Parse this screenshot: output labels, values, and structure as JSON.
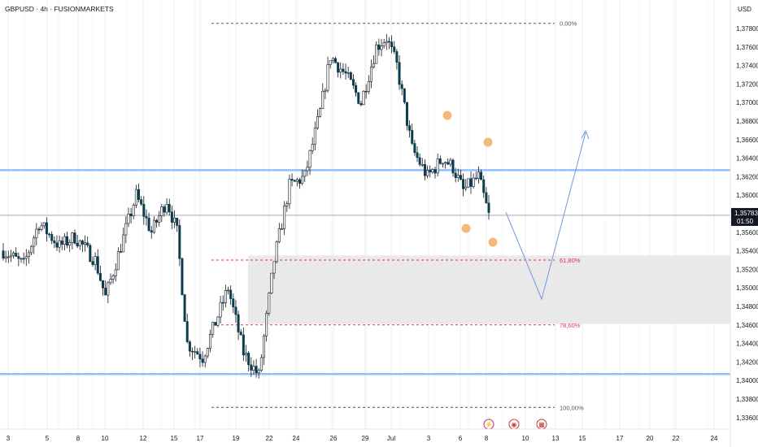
{
  "header": {
    "title": "GBPUSD · 4h · FUSIONMARKETS",
    "currency": "USD"
  },
  "price_tag": {
    "price": "1,35783",
    "countdown": "01:50"
  },
  "colors": {
    "up": "#ffffff",
    "up_border": "#131722",
    "down": "#0b3d4f",
    "horizontal_line": "#90bff9",
    "fib_box": "#e9e9e9",
    "fib_red": "#e0334f",
    "projection": "#6f9ae0",
    "marker": "#f5b97a",
    "grid": "#eeeeee"
  },
  "chart_data": {
    "type": "candlestick",
    "symbol": "GBPUSD",
    "timeframe": "4h",
    "y_axis": {
      "ticks": [
        "1,37800",
        "1,37600",
        "1,37400",
        "1,37200",
        "1,37000",
        "1,36800",
        "1,36600",
        "1,36400",
        "1,36200",
        "1,36000",
        "1,35600",
        "1,35400",
        "1,35200",
        "1,35000",
        "1,34800",
        "1,34600",
        "1,34400",
        "1,34200",
        "1,34000",
        "1,33800",
        "1,33600"
      ],
      "tick_values": [
        1.378,
        1.376,
        1.374,
        1.372,
        1.37,
        1.368,
        1.366,
        1.364,
        1.362,
        1.36,
        1.356,
        1.354,
        1.352,
        1.35,
        1.348,
        1.346,
        1.344,
        1.342,
        1.34,
        1.338,
        1.336
      ],
      "range": [
        1.3355,
        1.3825
      ]
    },
    "x_axis": {
      "labels": [
        "3",
        "5",
        "8",
        "10",
        "12",
        "15",
        "17",
        "19",
        "22",
        "24",
        "26",
        "29",
        "Jul",
        "3",
        "6",
        "8",
        "10",
        "13",
        "15",
        "17",
        "20",
        "22",
        "24"
      ]
    },
    "horizontal_lines": [
      1.3627,
      1.3407
    ],
    "current_price": 1.35783,
    "fibonacci": [
      {
        "label": "0,00%",
        "level": 1.37855
      },
      {
        "label": "61,80%",
        "level": 1.353
      },
      {
        "label": "78,60%",
        "level": 1.346
      },
      {
        "label": "100,00%",
        "level": 1.3371
      }
    ],
    "projection_path": [
      [
        1.3575,
        0
      ],
      [
        1.3493,
        1
      ],
      [
        1.368,
        2
      ]
    ],
    "event_icons": [
      "lightning",
      "us-flag",
      "calendar"
    ],
    "candle_seed": {
      "start": 1.3535,
      "count": 150
    }
  }
}
